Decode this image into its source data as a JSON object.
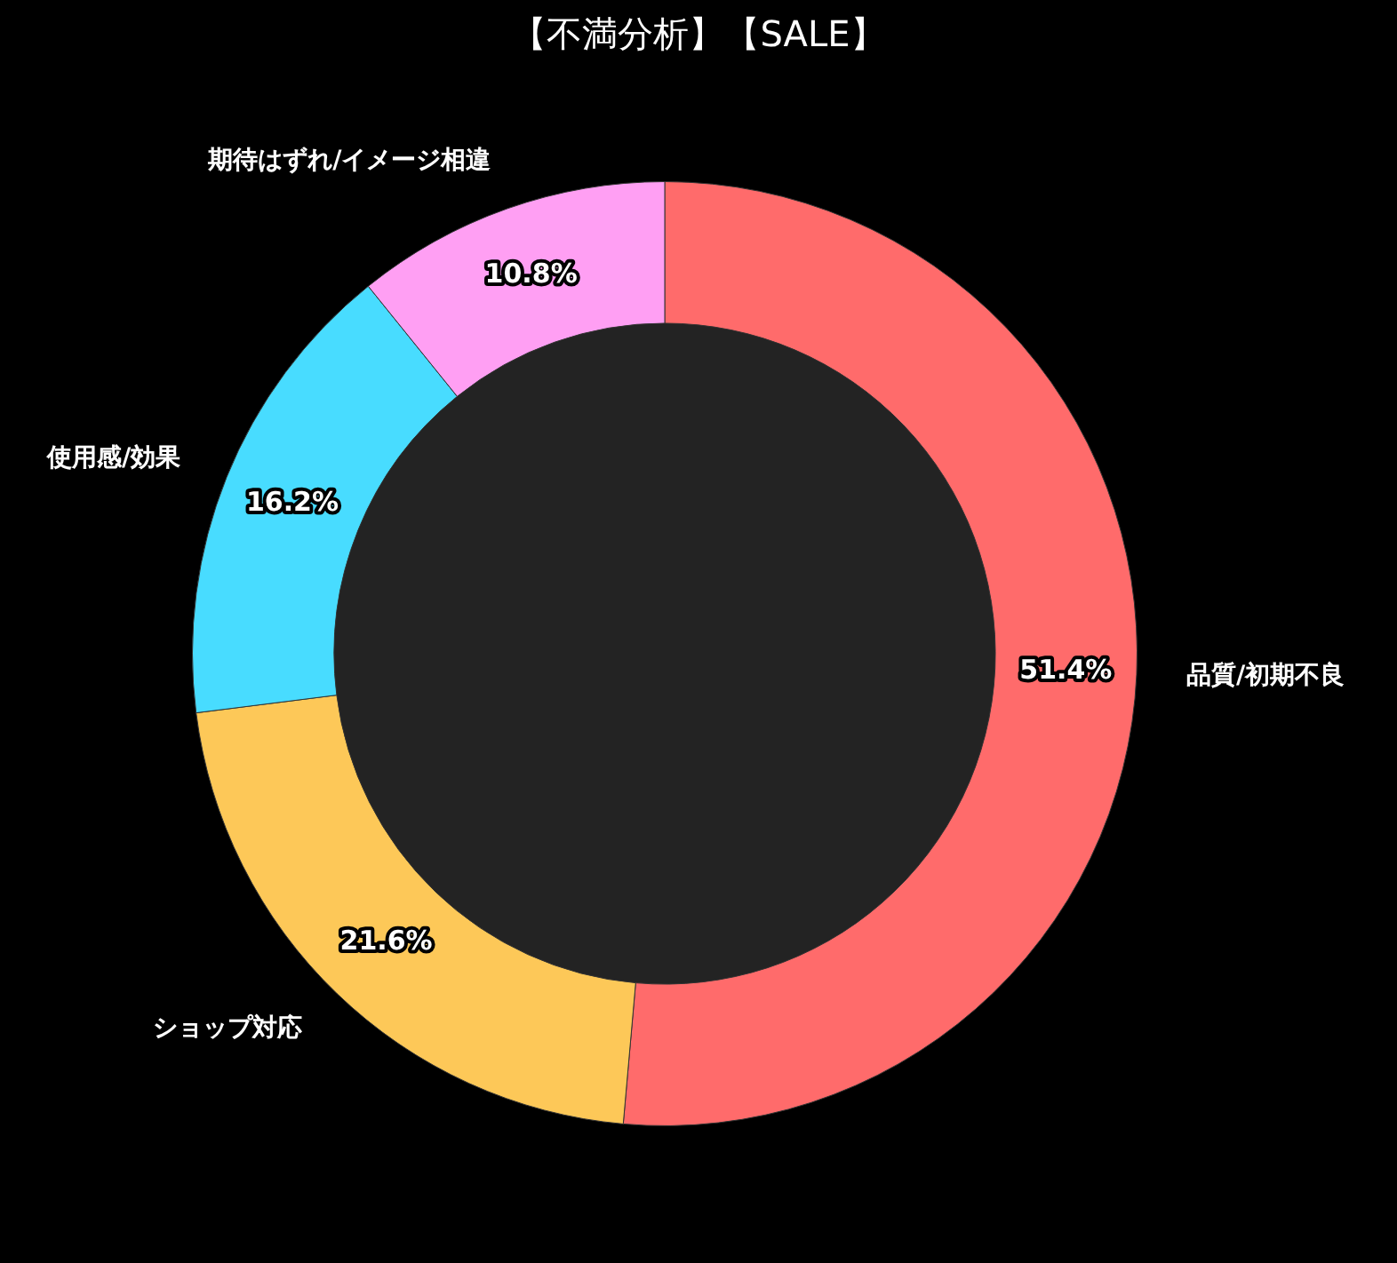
{
  "chart_data": {
    "type": "donut",
    "title": "【不満分析】【SALE】",
    "categories": [
      "品質/初期不良",
      "ショップ対応",
      "使用感/効果",
      "期待はずれ/イメージ相違"
    ],
    "values": [
      51.4,
      21.6,
      16.2,
      10.8
    ],
    "value_labels": [
      "51.4%",
      "21.6%",
      "16.2%",
      "10.8%"
    ],
    "colors": [
      "#ff6b6b",
      "#fdc858",
      "#48dcff",
      "#ff9ff3"
    ],
    "legend": false
  }
}
